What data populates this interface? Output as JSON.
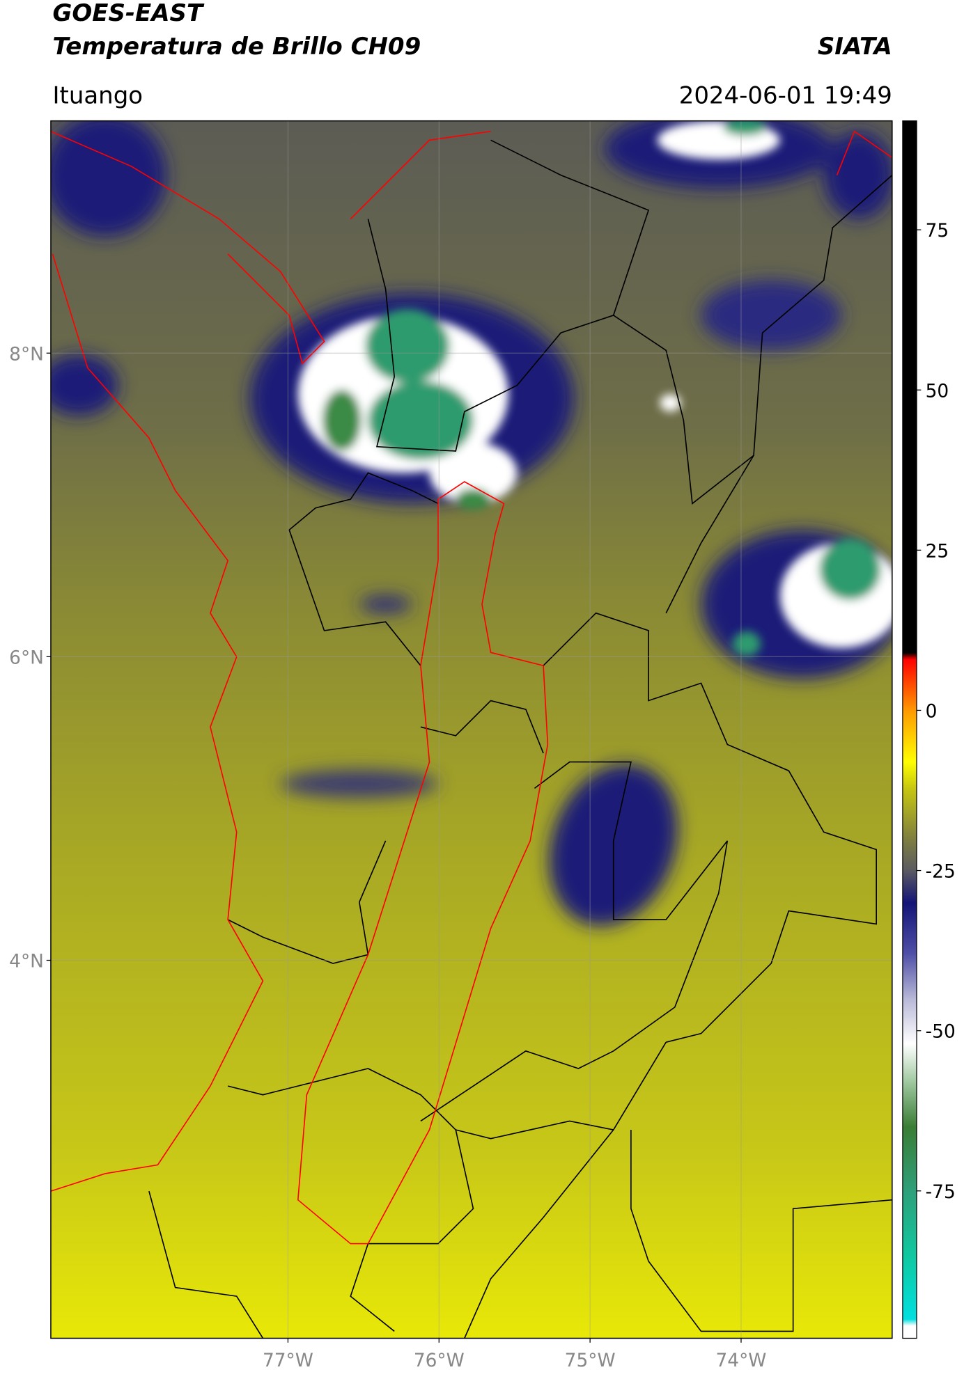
{
  "header": {
    "title": "GOES-EAST",
    "subtitle": "Temperatura de Brillo CH09",
    "source": "SIATA",
    "location": "Ituango",
    "datetime": "2024-06-01 19:49"
  },
  "map": {
    "xlim": [
      -78.57,
      -73.0
    ],
    "ylim": [
      1.51,
      9.53
    ],
    "xticks": [
      {
        "value": -77,
        "label": "77°W"
      },
      {
        "value": -76,
        "label": "76°W"
      },
      {
        "value": -75,
        "label": "75°W"
      },
      {
        "value": -74,
        "label": "74°W"
      }
    ],
    "yticks": [
      {
        "value": 8,
        "label": "8°N"
      },
      {
        "value": 6,
        "label": "6°N"
      },
      {
        "value": 4,
        "label": "4°N"
      }
    ],
    "grid": true
  },
  "colorbar": {
    "clim": [
      -98,
      92
    ],
    "ticks": [
      75,
      50,
      25,
      0,
      -25,
      -50,
      -75
    ],
    "colormap": [
      {
        "value": -98,
        "color": "#ffffff"
      },
      {
        "value": -96,
        "color": "#ffffff"
      },
      {
        "value": -95,
        "color": "#00e0e0"
      },
      {
        "value": -85,
        "color": "#10c8a0"
      },
      {
        "value": -75,
        "color": "#2ea07a"
      },
      {
        "value": -65,
        "color": "#3a7d35"
      },
      {
        "value": -58,
        "color": "#9fc89f"
      },
      {
        "value": -52,
        "color": "#ffffff"
      },
      {
        "value": -45,
        "color": "#b8b8d8"
      },
      {
        "value": -38,
        "color": "#5050a8"
      },
      {
        "value": -30,
        "color": "#141478"
      },
      {
        "value": -25,
        "color": "#5a5a62"
      },
      {
        "value": -20,
        "color": "#7f7f40"
      },
      {
        "value": -12,
        "color": "#c8c810"
      },
      {
        "value": -8,
        "color": "#ffff00"
      },
      {
        "value": 0,
        "color": "#ff9900"
      },
      {
        "value": 8,
        "color": "#ff0000"
      },
      {
        "value": 9,
        "color": "#000000"
      },
      {
        "value": 92,
        "color": "#000000"
      }
    ]
  }
}
